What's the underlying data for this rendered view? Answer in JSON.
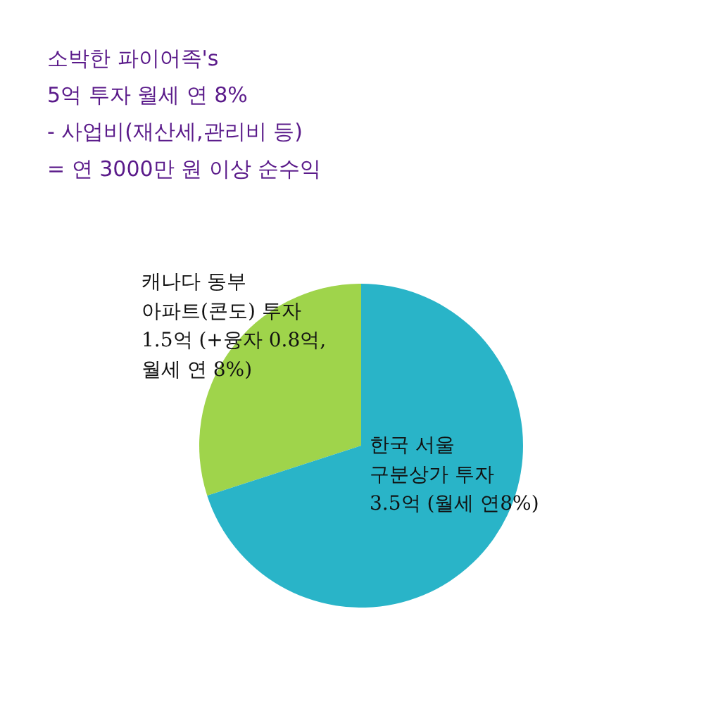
{
  "chart_data": {
    "type": "pie",
    "title": "소박한 파이어족's\n5억 투자 월세 연 8%\n- 사업비(재산세,관리비 등)\n= 연 3000만 원 이상 순수익",
    "categories": [
      "캐나다 동부\n아파트(콘도) 투자\n1.5억 (+융자 0.8억,\n월세 연 8%)",
      "한국 서울\n구분상가 투자\n3.5억 (월세 연8%)"
    ],
    "values": [
      1.5,
      3.5
    ],
    "colors": [
      "#9fd44b",
      "#29b4c8"
    ],
    "legend": false
  }
}
